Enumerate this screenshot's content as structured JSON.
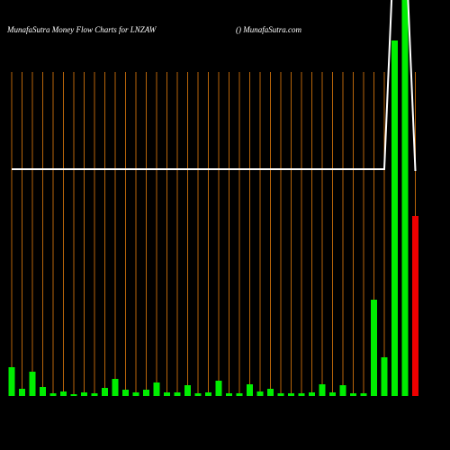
{
  "chart_data": {
    "type": "bar",
    "title": "MunafaSutra  Money Flow  Charts for LNZAW",
    "subtitle": "() MunafaSutra.com",
    "categories": [
      null,
      null,
      null,
      null,
      null,
      null,
      null,
      null,
      null,
      null,
      null,
      null,
      null,
      null,
      null,
      null,
      null,
      null,
      null,
      null,
      null,
      null,
      null,
      null,
      null,
      null,
      null,
      null,
      null,
      null,
      null,
      null,
      null,
      null,
      null,
      null,
      null,
      null,
      null,
      null
    ],
    "series": [
      {
        "colors": [
          "#00ee00",
          "#00ee00",
          "#00ee00",
          "#00ee00",
          "#00ee00",
          "#00ee00",
          "#00ee00",
          "#00ee00",
          "#00ee00",
          "#00ee00",
          "#00ee00",
          "#00ee00",
          "#00ee00",
          "#00ee00",
          "#00ee00",
          "#00ee00",
          "#00ee00",
          "#00ee00",
          "#00ee00",
          "#00ee00",
          "#00ee00",
          "#00ee00",
          "#00ee00",
          "#00ee00",
          "#00ee00",
          "#00ee00",
          "#00ee00",
          "#00ee00",
          "#00ee00",
          "#00ee00",
          "#00ee00",
          "#00ee00",
          "#00ee00",
          "#00ee00",
          "#00ee00",
          "#00ee00",
          "#00ee00",
          "#00ee00",
          "#00ee00",
          "#ee0000"
        ],
        "values": [
          32,
          8,
          27,
          10,
          3,
          5,
          2,
          4,
          3,
          9,
          19,
          7,
          4,
          7,
          15,
          4,
          4,
          12,
          3,
          4,
          17,
          3,
          3,
          13,
          5,
          8,
          3,
          3,
          3,
          4,
          13,
          4,
          12,
          3,
          3,
          107,
          43,
          395,
          460,
          200
        ]
      },
      {
        "type": "line",
        "color": "#ffffff",
        "values": [
          252,
          252,
          252,
          252,
          252,
          252,
          252,
          252,
          252,
          252,
          252,
          252,
          252,
          252,
          252,
          252,
          252,
          252,
          252,
          252,
          252,
          252,
          252,
          252,
          252,
          252,
          252,
          252,
          252,
          252,
          252,
          252,
          252,
          252,
          252,
          252,
          252,
          520,
          520,
          250
        ]
      }
    ],
    "ylim": [
      0,
      440
    ],
    "grid_color": "#b8650a"
  }
}
